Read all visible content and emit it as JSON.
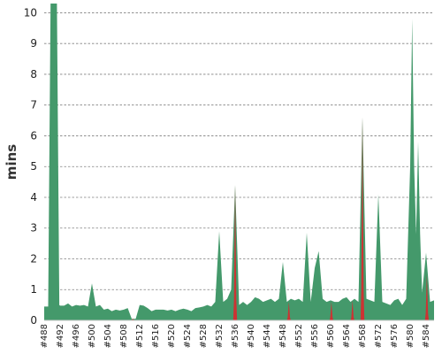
{
  "chart_data": {
    "type": "area",
    "ylabel": "mins",
    "xlabel": "",
    "ylim": [
      0,
      10.3
    ],
    "yticks": [
      0,
      1,
      2,
      3,
      4,
      5,
      6,
      7,
      8,
      9,
      10
    ],
    "grid": true,
    "colors": {
      "series": "#44996b",
      "failed": "#cc3333"
    },
    "x_start": 488,
    "x_end": 586,
    "x_tick_labels": [
      "#488",
      "#492",
      "#496",
      "#500",
      "#504",
      "#508",
      "#512",
      "#516",
      "#520",
      "#524",
      "#528",
      "#532",
      "#536",
      "#540",
      "#544",
      "#548",
      "#552",
      "#556",
      "#560",
      "#564",
      "#568",
      "#572",
      "#576",
      "#580",
      "#584"
    ],
    "series": [
      {
        "points": [
          [
            488,
            0.45
          ],
          [
            489,
            0.45
          ],
          [
            489.6,
            10.3
          ],
          [
            491.2,
            10.3
          ],
          [
            491.8,
            0.5
          ],
          [
            492,
            0.48
          ],
          [
            493,
            0.48
          ],
          [
            494,
            0.55
          ],
          [
            495,
            0.45
          ],
          [
            496,
            0.5
          ],
          [
            497,
            0.48
          ],
          [
            498,
            0.5
          ],
          [
            499,
            0.45
          ],
          [
            500,
            1.2
          ],
          [
            501,
            0.45
          ],
          [
            502,
            0.5
          ],
          [
            503,
            0.35
          ],
          [
            504,
            0.38
          ],
          [
            505,
            0.3
          ],
          [
            506,
            0.35
          ],
          [
            507,
            0.32
          ],
          [
            508,
            0.35
          ],
          [
            509,
            0.4
          ],
          [
            510,
            0.05
          ],
          [
            511,
            0.05
          ],
          [
            512,
            0.5
          ],
          [
            513,
            0.48
          ],
          [
            514,
            0.4
          ],
          [
            515,
            0.3
          ],
          [
            516,
            0.35
          ],
          [
            517,
            0.35
          ],
          [
            518,
            0.35
          ],
          [
            519,
            0.32
          ],
          [
            520,
            0.35
          ],
          [
            521,
            0.3
          ],
          [
            522,
            0.35
          ],
          [
            523,
            0.38
          ],
          [
            524,
            0.35
          ],
          [
            525,
            0.3
          ],
          [
            526,
            0.4
          ],
          [
            527,
            0.42
          ],
          [
            528,
            0.45
          ],
          [
            529,
            0.5
          ],
          [
            530,
            0.45
          ],
          [
            531,
            0.6
          ],
          [
            532,
            2.9
          ],
          [
            533,
            0.6
          ],
          [
            534,
            0.7
          ],
          [
            535,
            1.0
          ],
          [
            536,
            4.4
          ],
          [
            537,
            0.5
          ],
          [
            538,
            0.6
          ],
          [
            539,
            0.5
          ],
          [
            540,
            0.6
          ],
          [
            541,
            0.75
          ],
          [
            542,
            0.7
          ],
          [
            543,
            0.6
          ],
          [
            544,
            0.65
          ],
          [
            545,
            0.7
          ],
          [
            546,
            0.6
          ],
          [
            547,
            0.7
          ],
          [
            548,
            1.9
          ],
          [
            549,
            0.6
          ],
          [
            550,
            0.7
          ],
          [
            551,
            0.65
          ],
          [
            552,
            0.7
          ],
          [
            553,
            0.6
          ],
          [
            554,
            2.85
          ],
          [
            555,
            0.6
          ],
          [
            556,
            1.7
          ],
          [
            557,
            2.25
          ],
          [
            558,
            0.7
          ],
          [
            559,
            0.6
          ],
          [
            560,
            0.65
          ],
          [
            561,
            0.6
          ],
          [
            562,
            0.6
          ],
          [
            563,
            0.7
          ],
          [
            564,
            0.75
          ],
          [
            565,
            0.6
          ],
          [
            566,
            0.7
          ],
          [
            567,
            0.6
          ],
          [
            568,
            6.6
          ],
          [
            569,
            0.7
          ],
          [
            570,
            0.65
          ],
          [
            571,
            0.6
          ],
          [
            572,
            4.1
          ],
          [
            573,
            0.6
          ],
          [
            574,
            0.55
          ],
          [
            575,
            0.5
          ],
          [
            576,
            0.65
          ],
          [
            577,
            0.7
          ],
          [
            578,
            0.5
          ],
          [
            579,
            0.7
          ],
          [
            580,
            5.0
          ],
          [
            580.5,
            9.8
          ],
          [
            581,
            5.0
          ],
          [
            581.5,
            2.8
          ],
          [
            582,
            5.8
          ],
          [
            582.5,
            2.8
          ],
          [
            583,
            0.9
          ],
          [
            584,
            2.2
          ],
          [
            585,
            0.6
          ],
          [
            586,
            0.65
          ]
        ]
      }
    ],
    "failed_builds": [
      {
        "x": 510.3,
        "value": 0.05
      },
      {
        "x": 536,
        "value": 4.4
      },
      {
        "x": 549.5,
        "value": 0.6
      },
      {
        "x": 560.2,
        "value": 0.6
      },
      {
        "x": 565.5,
        "value": 0.65
      },
      {
        "x": 568,
        "value": 6.6
      },
      {
        "x": 584.2,
        "value": 1.5
      }
    ]
  }
}
